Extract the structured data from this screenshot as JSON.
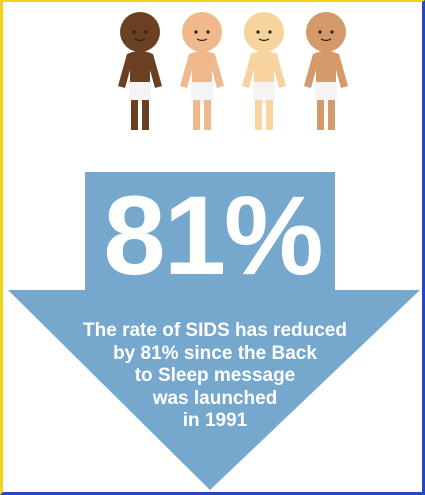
{
  "stat": {
    "value": "81%"
  },
  "caption_lines": [
    "The rate of SIDS has reduced",
    "by 81% since the Back",
    "to Sleep message",
    "was launched",
    "in 1991"
  ],
  "colors": {
    "arrow": "#75a8cc",
    "frame_left_top": "#f2d21b",
    "frame_right_bottom": "#2446c8",
    "skin_tones": [
      "#6b3f22",
      "#efb98d",
      "#f7d39e",
      "#d49a6a"
    ],
    "diaper": "#f4f4f4"
  },
  "icons": [
    "baby-icon",
    "baby-icon",
    "baby-icon",
    "baby-icon",
    "down-arrow-icon"
  ]
}
